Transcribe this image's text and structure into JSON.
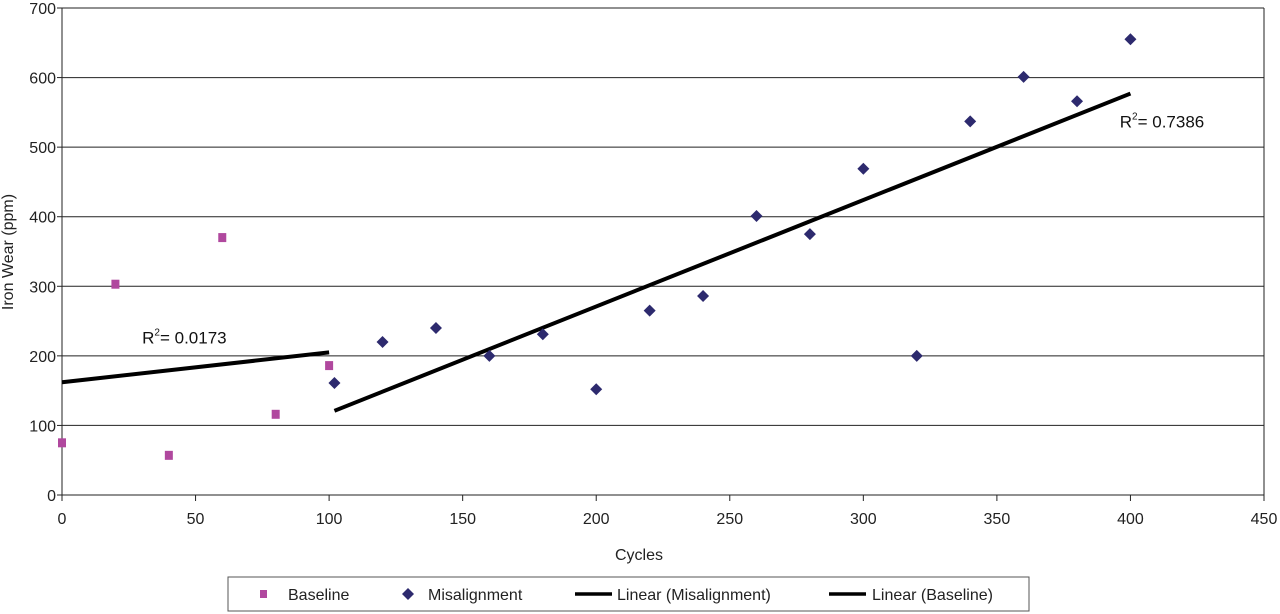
{
  "chart_data": {
    "type": "scatter",
    "title": "",
    "xlabel": "Cycles",
    "ylabel": "Iron Wear (ppm)",
    "xlim": [
      0,
      450
    ],
    "ylim": [
      0,
      700
    ],
    "xticks": [
      "0",
      "50",
      "100",
      "150",
      "200",
      "250",
      "300",
      "350",
      "400",
      "450"
    ],
    "yticks": [
      "0",
      "100",
      "200",
      "300",
      "400",
      "500",
      "600",
      "700"
    ],
    "grid": "horizontal",
    "legend_position": "bottom",
    "series": [
      {
        "name": "Baseline",
        "marker": "square",
        "color": "#b0489e",
        "points": [
          [
            0,
            75
          ],
          [
            20,
            303
          ],
          [
            40,
            57
          ],
          [
            60,
            370
          ],
          [
            80,
            116
          ],
          [
            100,
            186
          ]
        ]
      },
      {
        "name": "Misalignment",
        "marker": "diamond",
        "color": "#2d2a6e",
        "points": [
          [
            102,
            161
          ],
          [
            120,
            220
          ],
          [
            140,
            240
          ],
          [
            160,
            200
          ],
          [
            180,
            231
          ],
          [
            200,
            152
          ],
          [
            220,
            265
          ],
          [
            240,
            286
          ],
          [
            260,
            401
          ],
          [
            280,
            375
          ],
          [
            300,
            469
          ],
          [
            320,
            200
          ],
          [
            340,
            537
          ],
          [
            360,
            601
          ],
          [
            380,
            566
          ],
          [
            400,
            655
          ]
        ]
      }
    ],
    "trendlines": [
      {
        "name": "Linear (Misalignment)",
        "color": "#000000",
        "from": [
          102,
          121
        ],
        "to": [
          400,
          577
        ]
      },
      {
        "name": "Linear (Baseline)",
        "color": "#000000",
        "from": [
          0,
          162
        ],
        "to": [
          100,
          205
        ]
      }
    ],
    "annotations": [
      {
        "r_prefix": "R",
        "sup": "2",
        "value": "= 0.7386",
        "at": [
          396,
          528
        ]
      },
      {
        "r_prefix": "R",
        "sup": "2",
        "value": "= 0.0173",
        "at": [
          30,
          218
        ]
      }
    ]
  }
}
